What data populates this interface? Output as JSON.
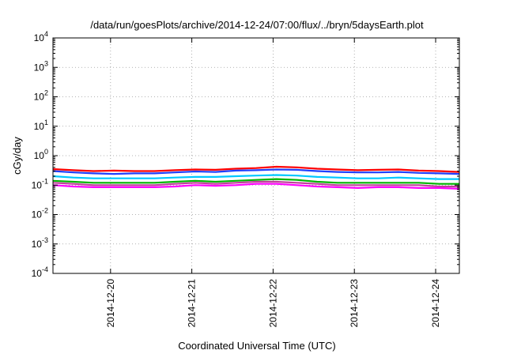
{
  "chart_data": {
    "type": "line",
    "title": "/data/run/goesPlots/archive/2014-12-24/07:00/flux/../bryn/5daysEarth.plot",
    "xlabel": "Coordinated Universal Time (UTC)",
    "ylabel": "cGy/day",
    "yscale": "log",
    "ylim": [
      0.0001,
      10000
    ],
    "xlim": [
      "2014-12-19 07:00",
      "2014-12-24 07:00"
    ],
    "grid": true,
    "x_ticks": [
      "2014-12-20",
      "2014-12-21",
      "2014-12-22",
      "2014-12-23",
      "2014-12-24"
    ],
    "y_ticks": [
      {
        "base": "10",
        "exp": "4",
        "value": 10000
      },
      {
        "base": "10",
        "exp": "3",
        "value": 1000
      },
      {
        "base": "10",
        "exp": "2",
        "value": 100
      },
      {
        "base": "10",
        "exp": "1",
        "value": 10
      },
      {
        "base": "10",
        "exp": "0",
        "value": 1
      },
      {
        "base": "10",
        "exp": "-1",
        "value": 0.1
      },
      {
        "base": "10",
        "exp": "-2",
        "value": 0.01
      },
      {
        "base": "10",
        "exp": "-3",
        "value": 0.001
      },
      {
        "base": "10",
        "exp": "-4",
        "value": 0.0001
      }
    ],
    "x": [
      "2014-12-19 07:00",
      "2014-12-19 13:00",
      "2014-12-19 19:00",
      "2014-12-20 01:00",
      "2014-12-20 07:00",
      "2014-12-20 13:00",
      "2014-12-20 19:00",
      "2014-12-21 01:00",
      "2014-12-21 07:00",
      "2014-12-21 13:00",
      "2014-12-21 19:00",
      "2014-12-22 01:00",
      "2014-12-22 07:00",
      "2014-12-22 13:00",
      "2014-12-22 19:00",
      "2014-12-23 01:00",
      "2014-12-23 07:00",
      "2014-12-23 13:00",
      "2014-12-23 19:00",
      "2014-12-24 01:00",
      "2014-12-24 07:00"
    ],
    "series": [
      {
        "color": "#ff0000",
        "values": [
          0.35,
          0.32,
          0.3,
          0.31,
          0.3,
          0.3,
          0.32,
          0.34,
          0.33,
          0.36,
          0.38,
          0.42,
          0.4,
          0.36,
          0.34,
          0.32,
          0.33,
          0.34,
          0.31,
          0.3,
          0.28
        ]
      },
      {
        "color": "#1f3fff",
        "values": [
          0.3,
          0.27,
          0.25,
          0.24,
          0.25,
          0.25,
          0.27,
          0.29,
          0.28,
          0.31,
          0.32,
          0.34,
          0.33,
          0.3,
          0.28,
          0.27,
          0.27,
          0.28,
          0.26,
          0.25,
          0.24
        ]
      },
      {
        "color": "#00c8ff",
        "values": [
          0.2,
          0.18,
          0.17,
          0.17,
          0.17,
          0.17,
          0.18,
          0.19,
          0.19,
          0.2,
          0.21,
          0.22,
          0.21,
          0.19,
          0.18,
          0.17,
          0.17,
          0.18,
          0.17,
          0.16,
          0.16
        ]
      },
      {
        "color": "#00b400",
        "values": [
          0.14,
          0.13,
          0.12,
          0.12,
          0.12,
          0.12,
          0.13,
          0.14,
          0.13,
          0.14,
          0.15,
          0.16,
          0.15,
          0.13,
          0.12,
          0.12,
          0.12,
          0.12,
          0.12,
          0.11,
          0.11
        ]
      },
      {
        "color": "#c0409a",
        "values": [
          0.12,
          0.11,
          0.1,
          0.1,
          0.1,
          0.1,
          0.11,
          0.12,
          0.11,
          0.12,
          0.13,
          0.13,
          0.12,
          0.11,
          0.1,
          0.1,
          0.1,
          0.1,
          0.1,
          0.09,
          0.09
        ]
      },
      {
        "color": "#ff00ff",
        "values": [
          0.1,
          0.09,
          0.085,
          0.085,
          0.085,
          0.085,
          0.09,
          0.1,
          0.095,
          0.1,
          0.11,
          0.11,
          0.1,
          0.09,
          0.085,
          0.08,
          0.085,
          0.085,
          0.08,
          0.08,
          0.075
        ]
      }
    ]
  }
}
